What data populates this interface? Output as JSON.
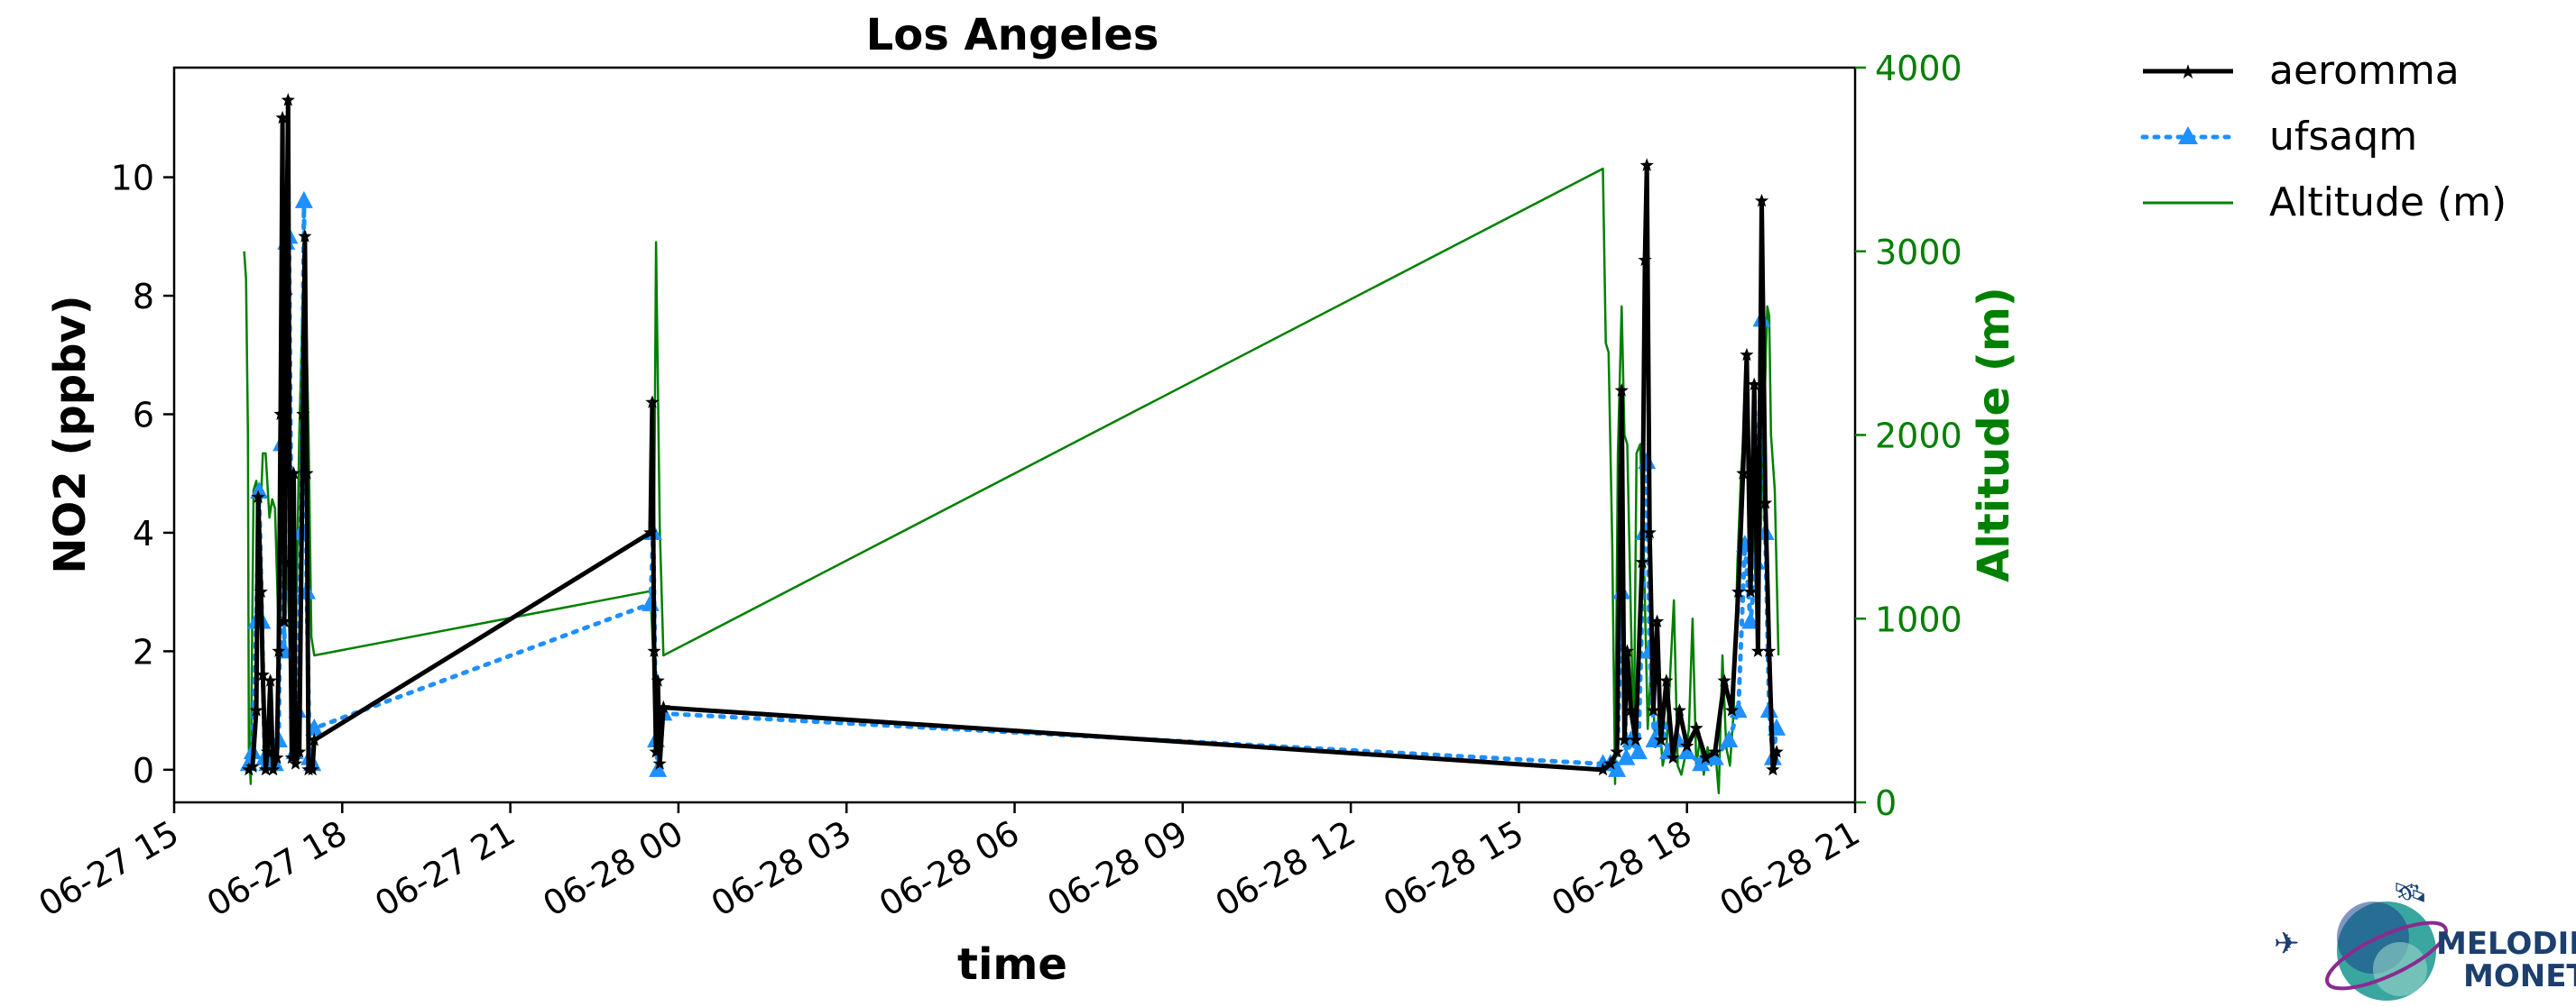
{
  "chart_data": {
    "type": "line",
    "title": "Los Angeles",
    "xlabel": "time",
    "ylabel": "NO2 (ppbv)",
    "y2label": "Altitude (m)",
    "xlim": [
      "2023-06-27 15:00",
      "2023-06-28 21:00"
    ],
    "x_ticks": [
      "06-27 15",
      "06-27 18",
      "06-27 21",
      "06-28 00",
      "06-28 03",
      "06-28 06",
      "06-28 09",
      "06-28 12",
      "06-28 15",
      "06-28 18",
      "06-28 21"
    ],
    "ylim": [
      -0.55,
      11.85
    ],
    "y_ticks": [
      0,
      2,
      4,
      6,
      8,
      10
    ],
    "y2lim": [
      0,
      4000
    ],
    "y2_ticks": [
      0,
      1000,
      2000,
      3000,
      4000
    ],
    "grid": false,
    "legend_position": "outside-top-right",
    "colors": {
      "aeromma": "#000000",
      "ufsaqm": "#1e90ff",
      "altitude": "#008000"
    },
    "series": [
      {
        "name": "aeromma",
        "axis": "left",
        "marker": "star",
        "points": [
          [
            "06-27 16:20",
            0.0
          ],
          [
            "06-27 16:24",
            0.05
          ],
          [
            "06-27 16:28",
            1.0
          ],
          [
            "06-27 16:30",
            4.6
          ],
          [
            "06-27 16:33",
            3.0
          ],
          [
            "06-27 16:35",
            1.6
          ],
          [
            "06-27 16:38",
            0.0
          ],
          [
            "06-27 16:40",
            0.3
          ],
          [
            "06-27 16:43",
            1.5
          ],
          [
            "06-27 16:46",
            0.0
          ],
          [
            "06-27 16:50",
            0.2
          ],
          [
            "06-27 16:52",
            2.0
          ],
          [
            "06-27 16:54",
            6.0
          ],
          [
            "06-27 16:56",
            11.0
          ],
          [
            "06-27 16:58",
            2.5
          ],
          [
            "06-27 17:00",
            8.0
          ],
          [
            "06-27 17:02",
            11.3
          ],
          [
            "06-27 17:04",
            3.5
          ],
          [
            "06-27 17:06",
            0.2
          ],
          [
            "06-27 17:08",
            5.0
          ],
          [
            "06-27 17:10",
            0.1
          ],
          [
            "06-27 17:14",
            0.3
          ],
          [
            "06-27 17:18",
            6.0
          ],
          [
            "06-27 17:20",
            9.0
          ],
          [
            "06-27 17:22",
            5.0
          ],
          [
            "06-27 17:24",
            0.0
          ],
          [
            "06-27 17:28",
            0.0
          ],
          [
            "06-27 17:30",
            0.5
          ],
          [
            "06-27 23:30",
            4.0
          ],
          [
            "06-27 23:32",
            6.2
          ],
          [
            "06-27 23:34",
            2.0
          ],
          [
            "06-27 23:36",
            0.3
          ],
          [
            "06-27 23:38",
            1.5
          ],
          [
            "06-27 23:40",
            0.1
          ],
          [
            "06-27 23:44",
            1.05
          ],
          [
            "06-28 16:30",
            0.0
          ],
          [
            "06-28 16:38",
            0.1
          ],
          [
            "06-28 16:45",
            0.3
          ],
          [
            "06-28 16:50",
            6.4
          ],
          [
            "06-28 16:53",
            0.5
          ],
          [
            "06-28 16:56",
            2.0
          ],
          [
            "06-28 17:00",
            1.0
          ],
          [
            "06-28 17:05",
            0.5
          ],
          [
            "06-28 17:12",
            3.5
          ],
          [
            "06-28 17:15",
            8.6
          ],
          [
            "06-28 17:17",
            10.2
          ],
          [
            "06-28 17:20",
            4.0
          ],
          [
            "06-28 17:24",
            1.0
          ],
          [
            "06-28 17:28",
            2.5
          ],
          [
            "06-28 17:32",
            0.5
          ],
          [
            "06-28 17:38",
            1.5
          ],
          [
            "06-28 17:45",
            0.2
          ],
          [
            "06-28 17:52",
            1.0
          ],
          [
            "06-28 18:00",
            0.4
          ],
          [
            "06-28 18:10",
            0.7
          ],
          [
            "06-28 18:20",
            0.2
          ],
          [
            "06-28 18:30",
            0.3
          ],
          [
            "06-28 18:40",
            1.5
          ],
          [
            "06-28 18:48",
            1.0
          ],
          [
            "06-28 18:55",
            3.0
          ],
          [
            "06-28 19:00",
            5.0
          ],
          [
            "06-28 19:04",
            7.0
          ],
          [
            "06-28 19:08",
            3.0
          ],
          [
            "06-28 19:12",
            6.5
          ],
          [
            "06-28 19:16",
            2.0
          ],
          [
            "06-28 19:20",
            9.6
          ],
          [
            "06-28 19:24",
            4.5
          ],
          [
            "06-28 19:28",
            2.0
          ],
          [
            "06-28 19:32",
            0.0
          ],
          [
            "06-28 19:36",
            0.3
          ]
        ]
      },
      {
        "name": "ufsaqm",
        "axis": "left",
        "marker": "triangle",
        "points": [
          [
            "06-27 16:20",
            0.1
          ],
          [
            "06-27 16:24",
            0.3
          ],
          [
            "06-27 16:28",
            2.5
          ],
          [
            "06-27 16:31",
            4.7
          ],
          [
            "06-27 16:34",
            2.5
          ],
          [
            "06-27 16:37",
            0.2
          ],
          [
            "06-27 16:40",
            0.1
          ],
          [
            "06-27 16:44",
            0.2
          ],
          [
            "06-27 16:48",
            0.1
          ],
          [
            "06-27 16:52",
            0.5
          ],
          [
            "06-27 16:55",
            5.5
          ],
          [
            "06-27 16:58",
            2.0
          ],
          [
            "06-27 17:00",
            8.9
          ],
          [
            "06-27 17:03",
            9.0
          ],
          [
            "06-27 17:06",
            3.0
          ],
          [
            "06-27 17:09",
            0.3
          ],
          [
            "06-27 17:12",
            1.0
          ],
          [
            "06-27 17:16",
            4.0
          ],
          [
            "06-27 17:19",
            9.6
          ],
          [
            "06-27 17:22",
            3.0
          ],
          [
            "06-27 17:25",
            0.2
          ],
          [
            "06-27 17:28",
            0.1
          ],
          [
            "06-27 17:30",
            0.7
          ],
          [
            "06-27 23:30",
            2.8
          ],
          [
            "06-27 23:33",
            4.0
          ],
          [
            "06-27 23:36",
            0.5
          ],
          [
            "06-27 23:38",
            0.0
          ],
          [
            "06-27 23:44",
            0.95
          ],
          [
            "06-28 16:30",
            0.1
          ],
          [
            "06-28 16:38",
            0.1
          ],
          [
            "06-28 16:45",
            0.0
          ],
          [
            "06-28 16:50",
            3.0
          ],
          [
            "06-28 16:55",
            0.2
          ],
          [
            "06-28 17:00",
            0.5
          ],
          [
            "06-28 17:08",
            0.3
          ],
          [
            "06-28 17:14",
            4.0
          ],
          [
            "06-28 17:17",
            5.2
          ],
          [
            "06-28 17:20",
            2.0
          ],
          [
            "06-28 17:25",
            0.5
          ],
          [
            "06-28 17:32",
            0.8
          ],
          [
            "06-28 17:40",
            0.3
          ],
          [
            "06-28 17:50",
            0.5
          ],
          [
            "06-28 18:00",
            0.3
          ],
          [
            "06-28 18:15",
            0.1
          ],
          [
            "06-28 18:30",
            0.2
          ],
          [
            "06-28 18:45",
            0.5
          ],
          [
            "06-28 18:55",
            1.0
          ],
          [
            "06-28 19:02",
            3.8
          ],
          [
            "06-28 19:08",
            2.5
          ],
          [
            "06-28 19:14",
            3.5
          ],
          [
            "06-28 19:20",
            7.6
          ],
          [
            "06-28 19:24",
            4.0
          ],
          [
            "06-28 19:28",
            1.0
          ],
          [
            "06-28 19:32",
            0.2
          ],
          [
            "06-28 19:36",
            0.7
          ]
        ]
      },
      {
        "name": "Altitude (m)",
        "axis": "right",
        "marker": "none",
        "points": [
          [
            "06-27 16:15",
            3000
          ],
          [
            "06-27 16:17",
            2850
          ],
          [
            "06-27 16:19",
            2000
          ],
          [
            "06-27 16:20",
            300
          ],
          [
            "06-27 16:22",
            100
          ],
          [
            "06-27 16:25",
            1700
          ],
          [
            "06-27 16:28",
            1750
          ],
          [
            "06-27 16:30",
            1600
          ],
          [
            "06-27 16:33",
            1650
          ],
          [
            "06-27 16:35",
            1900
          ],
          [
            "06-27 16:38",
            1900
          ],
          [
            "06-27 16:42",
            1550
          ],
          [
            "06-27 16:45",
            1650
          ],
          [
            "06-27 16:48",
            1600
          ],
          [
            "06-27 16:52",
            900
          ],
          [
            "06-27 16:55",
            2400
          ],
          [
            "06-27 16:58",
            800
          ],
          [
            "06-27 17:00",
            1400
          ],
          [
            "06-27 17:03",
            1000
          ],
          [
            "06-27 17:06",
            500
          ],
          [
            "06-27 17:10",
            800
          ],
          [
            "06-27 17:14",
            2000
          ],
          [
            "06-27 17:18",
            2800
          ],
          [
            "06-27 17:21",
            2750
          ],
          [
            "06-27 17:24",
            2000
          ],
          [
            "06-27 17:27",
            900
          ],
          [
            "06-27 17:30",
            800
          ],
          [
            "06-27 23:30",
            1150
          ],
          [
            "06-27 23:33",
            800
          ],
          [
            "06-27 23:36",
            3050
          ],
          [
            "06-27 23:40",
            1500
          ],
          [
            "06-27 23:44",
            800
          ],
          [
            "06-28 16:30",
            3450
          ],
          [
            "06-28 16:33",
            2500
          ],
          [
            "06-28 16:36",
            2450
          ],
          [
            "06-28 16:40",
            1400
          ],
          [
            "06-28 16:43",
            100
          ],
          [
            "06-28 16:46",
            1900
          ],
          [
            "06-28 16:50",
            2700
          ],
          [
            "06-28 16:53",
            2000
          ],
          [
            "06-28 16:56",
            1950
          ],
          [
            "06-28 17:00",
            1000
          ],
          [
            "06-28 17:03",
            300
          ],
          [
            "06-28 17:06",
            1900
          ],
          [
            "06-28 17:10",
            1950
          ],
          [
            "06-28 17:14",
            1300
          ],
          [
            "06-28 17:18",
            400
          ],
          [
            "06-28 17:22",
            800
          ],
          [
            "06-28 17:26",
            300
          ],
          [
            "06-28 17:30",
            500
          ],
          [
            "06-28 17:34",
            200
          ],
          [
            "06-28 17:38",
            300
          ],
          [
            "06-28 17:42",
            700
          ],
          [
            "06-28 17:46",
            1100
          ],
          [
            "06-28 17:50",
            200
          ],
          [
            "06-28 17:54",
            150
          ],
          [
            "06-28 17:58",
            250
          ],
          [
            "06-28 18:02",
            400
          ],
          [
            "06-28 18:06",
            1000
          ],
          [
            "06-28 18:10",
            200
          ],
          [
            "06-28 18:14",
            350
          ],
          [
            "06-28 18:18",
            150
          ],
          [
            "06-28 18:22",
            300
          ],
          [
            "06-28 18:26",
            200
          ],
          [
            "06-28 18:30",
            300
          ],
          [
            "06-28 18:34",
            50
          ],
          [
            "06-28 18:38",
            800
          ],
          [
            "06-28 18:42",
            300
          ],
          [
            "06-28 18:46",
            200
          ],
          [
            "06-28 18:50",
            500
          ],
          [
            "06-28 18:54",
            1300
          ],
          [
            "06-28 18:58",
            1800
          ],
          [
            "06-28 19:02",
            2100
          ],
          [
            "06-28 19:06",
            1800
          ],
          [
            "06-28 19:10",
            1800
          ],
          [
            "06-28 19:14",
            1100
          ],
          [
            "06-28 19:18",
            1300
          ],
          [
            "06-28 19:22",
            2000
          ],
          [
            "06-28 19:26",
            2700
          ],
          [
            "06-28 19:28",
            2650
          ],
          [
            "06-28 19:30",
            2000
          ],
          [
            "06-28 19:34",
            1700
          ],
          [
            "06-28 19:38",
            800
          ]
        ]
      }
    ]
  },
  "logo": {
    "line1": "MELODIES",
    "line2": "MONET"
  }
}
